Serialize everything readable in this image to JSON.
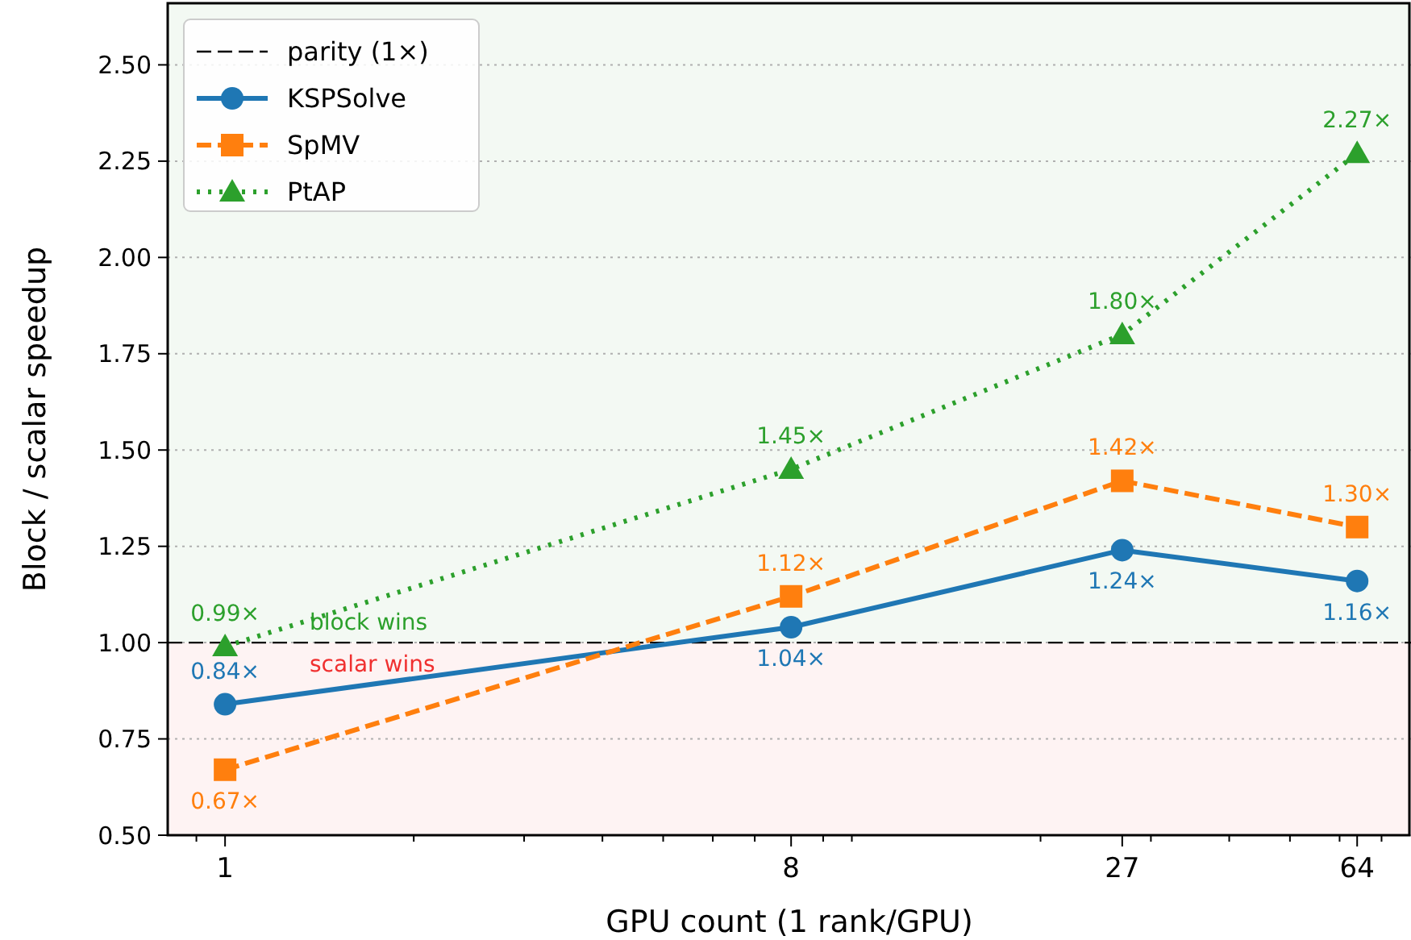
{
  "chart_data": {
    "type": "line",
    "xlabel": "GPU count (1 rank/GPU)",
    "ylabel": "Block / scalar speedup",
    "log": "x",
    "x": [
      1,
      8,
      27,
      64
    ],
    "xlim": [
      0.81,
      78
    ],
    "xticks": [
      {
        "value": 0.9,
        "label": null
      },
      1,
      {
        "value": 2,
        "label": null
      },
      {
        "value": 3,
        "label": null
      },
      {
        "value": 4,
        "label": null
      },
      {
        "value": 5,
        "label": null
      },
      {
        "value": 6,
        "label": null
      },
      {
        "value": 7,
        "label": null
      },
      8,
      {
        "value": 9,
        "label": null
      },
      {
        "value": 10,
        "label": null
      },
      {
        "value": 20,
        "label": null
      },
      27,
      {
        "value": 30,
        "label": null
      },
      {
        "value": 40,
        "label": null
      },
      {
        "value": 50,
        "label": null
      },
      {
        "value": 60,
        "label": null
      },
      64,
      {
        "value": 70,
        "label": null
      }
    ],
    "ylim": [
      0.5,
      2.66
    ],
    "yticks": [
      {
        "value": 0.5,
        "label": "0.50"
      },
      {
        "value": 0.75,
        "label": "0.75"
      },
      {
        "value": 1.0,
        "label": "1.00"
      },
      {
        "value": 1.25,
        "label": "1.25"
      },
      {
        "value": 1.5,
        "label": "1.50"
      },
      {
        "value": 1.75,
        "label": "1.75"
      },
      {
        "value": 2.0,
        "label": "2.00"
      },
      {
        "value": 2.25,
        "label": "2.25"
      },
      {
        "value": 2.5,
        "label": "2.50"
      }
    ],
    "grid": "y",
    "legend": "top left",
    "series": [
      {
        "name": "KSPSolve",
        "color": "#1f77b4",
        "values": [
          0.84,
          1.04,
          1.24,
          1.16
        ],
        "marker": "circle",
        "line_style": "solid",
        "value_labels": [
          "0.84×",
          "1.04×",
          "1.24×",
          "1.16×"
        ]
      },
      {
        "name": "SpMV",
        "color": "#ff7f0e",
        "values": [
          0.67,
          1.12,
          1.42,
          1.3
        ],
        "marker": "square",
        "line_style": "dashed",
        "value_labels": [
          "0.67×",
          "1.12×",
          "1.42×",
          "1.30×"
        ]
      },
      {
        "name": "PtAP",
        "color": "#2ca02c",
        "values": [
          0.99,
          1.45,
          1.8,
          2.27
        ],
        "marker": "triangle",
        "line_style": "dotted",
        "value_labels": [
          "0.99×",
          "1.45×",
          "1.80×",
          "2.27×"
        ]
      }
    ],
    "ref_lines": [
      {
        "axis": "y",
        "value": 1.0,
        "label": "parity (1×)",
        "color": "#000000",
        "line_style": "dashed"
      }
    ],
    "bands": [
      {
        "axis": "y",
        "from": 1.0,
        "to": 2.66,
        "color": "#2ca02c"
      },
      {
        "axis": "y",
        "from": 0.5,
        "to": 1.0,
        "color": "#f03030"
      }
    ],
    "annotations": [
      "block wins",
      "scalar wins"
    ]
  }
}
